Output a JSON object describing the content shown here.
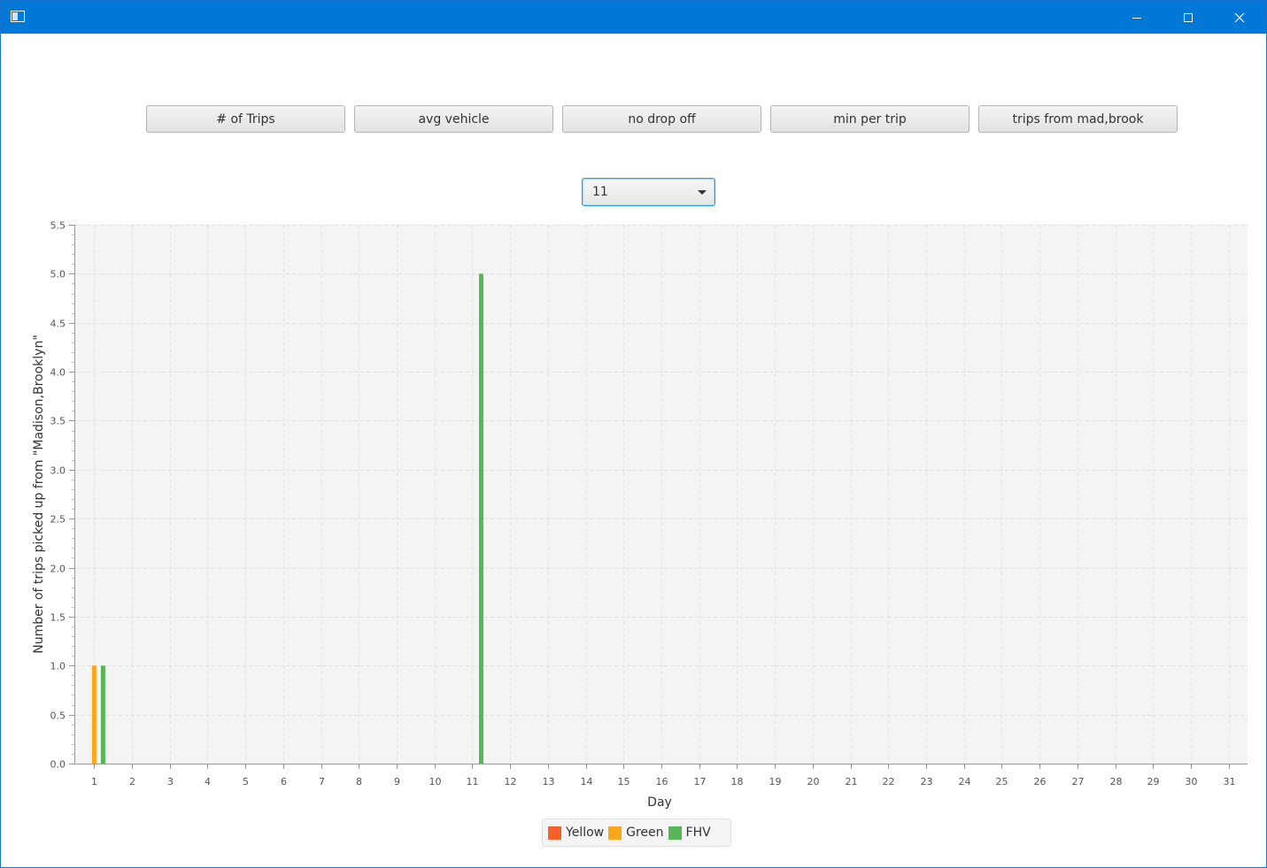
{
  "window": {
    "icon": "app-window-icon",
    "controls": [
      {
        "name": "minimize",
        "icon": "minimize-icon"
      },
      {
        "name": "maximize",
        "icon": "maximize-icon"
      },
      {
        "name": "close",
        "icon": "close-icon"
      }
    ]
  },
  "toolbar": {
    "buttons": [
      "# of Trips",
      "avg vehicle",
      "no drop off",
      "min per trip",
      "trips from mad,brook"
    ]
  },
  "month_select": {
    "selected": "11",
    "icon": "chevron-down-icon"
  },
  "colors": {
    "yellow": "#f3622d",
    "green": "#fba71b",
    "fhv": "#57b757",
    "plot_background": "#f4f4f4",
    "grid": "#e0e0e0",
    "titlebar": "#0078d7"
  },
  "chart_data": {
    "type": "bar",
    "xlabel": "Day",
    "ylabel": "Number of trips picked up from \"Madison,Brooklyn\"",
    "ylim": [
      0,
      5.5
    ],
    "ytick_step": 0.5,
    "yticks": [
      "0.0",
      "0.5",
      "1.0",
      "1.5",
      "2.0",
      "2.5",
      "3.0",
      "3.5",
      "4.0",
      "4.5",
      "5.0",
      "5.5"
    ],
    "grid": true,
    "legend_position": "bottom",
    "categories": [
      "1",
      "2",
      "3",
      "4",
      "5",
      "6",
      "7",
      "8",
      "9",
      "10",
      "11",
      "12",
      "13",
      "14",
      "15",
      "16",
      "17",
      "18",
      "19",
      "20",
      "21",
      "22",
      "23",
      "24",
      "25",
      "26",
      "27",
      "28",
      "29",
      "30",
      "31"
    ],
    "series": [
      {
        "name": "Yellow",
        "color": "#f3622d",
        "values": [
          0,
          0,
          0,
          0,
          0,
          0,
          0,
          0,
          0,
          0,
          0,
          0,
          0,
          0,
          0,
          0,
          0,
          0,
          0,
          0,
          0,
          0,
          0,
          0,
          0,
          0,
          0,
          0,
          0,
          0,
          0
        ]
      },
      {
        "name": "Green",
        "color": "#fba71b",
        "values": [
          1,
          0,
          0,
          0,
          0,
          0,
          0,
          0,
          0,
          0,
          0,
          0,
          0,
          0,
          0,
          0,
          0,
          0,
          0,
          0,
          0,
          0,
          0,
          0,
          0,
          0,
          0,
          0,
          0,
          0,
          0
        ]
      },
      {
        "name": "FHV",
        "color": "#57b757",
        "values": [
          1,
          0,
          0,
          0,
          0,
          0,
          0,
          0,
          0,
          0,
          5,
          0,
          0,
          0,
          0,
          0,
          0,
          0,
          0,
          0,
          0,
          0,
          0,
          0,
          0,
          0,
          0,
          0,
          0,
          0,
          0
        ]
      }
    ]
  }
}
